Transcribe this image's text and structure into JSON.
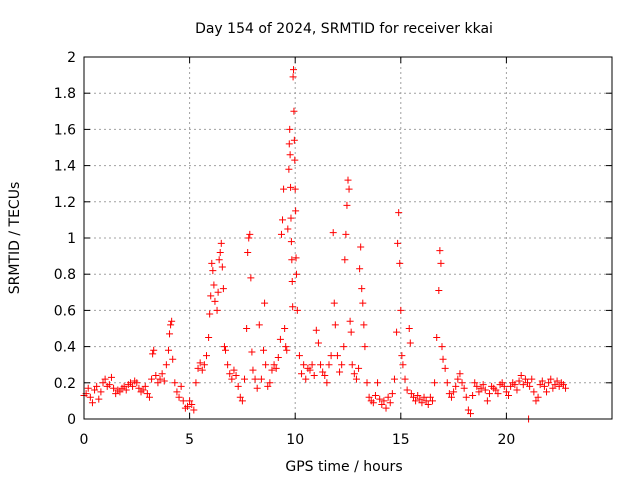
{
  "chart_data": {
    "type": "scatter",
    "title": "Day 154 of 2024, SRMTID for receiver kkai",
    "xlabel": "GPS time / hours",
    "ylabel": "SRMTID / TECUs",
    "xlim": [
      0,
      25
    ],
    "ylim": [
      0,
      2
    ],
    "xticks": [
      0,
      5,
      10,
      15,
      20
    ],
    "xtick_labels": [
      "0",
      "5",
      "10",
      "15",
      "20"
    ],
    "yticks": [
      0,
      0.2,
      0.4,
      0.6,
      0.8,
      1.0,
      1.2,
      1.4,
      1.6,
      1.8,
      2.0
    ],
    "ytick_labels": [
      "0",
      "0.2",
      "0.4",
      "0.6",
      "0.8",
      "1",
      "1.2",
      "1.4",
      "1.6",
      "1.8",
      "2"
    ],
    "grid": true,
    "marker": "+",
    "series": [
      {
        "name": "SRMTID",
        "color": "#ff0000",
        "points": [
          [
            0.0,
            0.13
          ],
          [
            0.1,
            0.14
          ],
          [
            0.2,
            0.17
          ],
          [
            0.3,
            0.12
          ],
          [
            0.4,
            0.09
          ],
          [
            0.5,
            0.16
          ],
          [
            0.6,
            0.18
          ],
          [
            0.7,
            0.11
          ],
          [
            0.8,
            0.15
          ],
          [
            0.9,
            0.2
          ],
          [
            1.0,
            0.22
          ],
          [
            1.1,
            0.18
          ],
          [
            1.2,
            0.19
          ],
          [
            1.3,
            0.23
          ],
          [
            1.4,
            0.17
          ],
          [
            1.5,
            0.14
          ],
          [
            1.6,
            0.16
          ],
          [
            1.7,
            0.15
          ],
          [
            1.8,
            0.17
          ],
          [
            1.9,
            0.18
          ],
          [
            2.0,
            0.16
          ],
          [
            2.1,
            0.19
          ],
          [
            2.2,
            0.2
          ],
          [
            2.3,
            0.18
          ],
          [
            2.4,
            0.21
          ],
          [
            2.5,
            0.2
          ],
          [
            2.6,
            0.17
          ],
          [
            2.7,
            0.15
          ],
          [
            2.8,
            0.16
          ],
          [
            2.9,
            0.18
          ],
          [
            3.0,
            0.14
          ],
          [
            3.1,
            0.12
          ],
          [
            3.2,
            0.22
          ],
          [
            3.25,
            0.36
          ],
          [
            3.3,
            0.38
          ],
          [
            3.4,
            0.24
          ],
          [
            3.5,
            0.2
          ],
          [
            3.6,
            0.22
          ],
          [
            3.7,
            0.25
          ],
          [
            3.8,
            0.21
          ],
          [
            3.9,
            0.3
          ],
          [
            4.0,
            0.38
          ],
          [
            4.05,
            0.47
          ],
          [
            4.1,
            0.52
          ],
          [
            4.15,
            0.54
          ],
          [
            4.2,
            0.33
          ],
          [
            4.3,
            0.2
          ],
          [
            4.4,
            0.15
          ],
          [
            4.5,
            0.12
          ],
          [
            4.6,
            0.18
          ],
          [
            4.7,
            0.1
          ],
          [
            4.8,
            0.06
          ],
          [
            4.9,
            0.07
          ],
          [
            5.0,
            0.1
          ],
          [
            5.1,
            0.08
          ],
          [
            5.2,
            0.05
          ],
          [
            5.3,
            0.2
          ],
          [
            5.4,
            0.28
          ],
          [
            5.5,
            0.31
          ],
          [
            5.6,
            0.27
          ],
          [
            5.7,
            0.3
          ],
          [
            5.8,
            0.35
          ],
          [
            5.9,
            0.45
          ],
          [
            5.95,
            0.58
          ],
          [
            6.0,
            0.68
          ],
          [
            6.05,
            0.86
          ],
          [
            6.1,
            0.82
          ],
          [
            6.15,
            0.74
          ],
          [
            6.2,
            0.65
          ],
          [
            6.3,
            0.6
          ],
          [
            6.35,
            0.7
          ],
          [
            6.4,
            0.88
          ],
          [
            6.45,
            0.92
          ],
          [
            6.5,
            0.97
          ],
          [
            6.55,
            0.84
          ],
          [
            6.6,
            0.72
          ],
          [
            6.65,
            0.4
          ],
          [
            6.7,
            0.38
          ],
          [
            6.8,
            0.3
          ],
          [
            6.9,
            0.25
          ],
          [
            7.0,
            0.22
          ],
          [
            7.1,
            0.27
          ],
          [
            7.2,
            0.24
          ],
          [
            7.3,
            0.18
          ],
          [
            7.4,
            0.12
          ],
          [
            7.5,
            0.1
          ],
          [
            7.6,
            0.22
          ],
          [
            7.7,
            0.5
          ],
          [
            7.75,
            0.92
          ],
          [
            7.8,
            1.0
          ],
          [
            7.85,
            1.02
          ],
          [
            7.9,
            0.78
          ],
          [
            7.95,
            0.37
          ],
          [
            8.0,
            0.27
          ],
          [
            8.1,
            0.22
          ],
          [
            8.2,
            0.17
          ],
          [
            8.3,
            0.52
          ],
          [
            8.4,
            0.22
          ],
          [
            8.5,
            0.38
          ],
          [
            8.55,
            0.64
          ],
          [
            8.6,
            0.3
          ],
          [
            8.7,
            0.18
          ],
          [
            8.8,
            0.2
          ],
          [
            8.9,
            0.27
          ],
          [
            9.0,
            0.3
          ],
          [
            9.1,
            0.28
          ],
          [
            9.2,
            0.34
          ],
          [
            9.3,
            0.44
          ],
          [
            9.35,
            1.02
          ],
          [
            9.4,
            1.1
          ],
          [
            9.45,
            1.27
          ],
          [
            9.5,
            0.5
          ],
          [
            9.55,
            0.4
          ],
          [
            9.6,
            0.38
          ],
          [
            9.65,
            1.05
          ],
          [
            9.7,
            1.38
          ],
          [
            9.72,
            1.52
          ],
          [
            9.74,
            1.6
          ],
          [
            9.76,
            1.46
          ],
          [
            9.78,
            1.28
          ],
          [
            9.8,
            1.11
          ],
          [
            9.82,
            0.98
          ],
          [
            9.84,
            0.88
          ],
          [
            9.86,
            0.76
          ],
          [
            9.88,
            0.62
          ],
          [
            9.9,
            1.89
          ],
          [
            9.92,
            1.93
          ],
          [
            9.94,
            1.7
          ],
          [
            9.96,
            1.54
          ],
          [
            9.98,
            1.43
          ],
          [
            10.0,
            1.27
          ],
          [
            10.02,
            1.15
          ],
          [
            10.04,
            0.89
          ],
          [
            10.06,
            0.8
          ],
          [
            10.1,
            0.6
          ],
          [
            10.2,
            0.35
          ],
          [
            10.3,
            0.25
          ],
          [
            10.4,
            0.3
          ],
          [
            10.5,
            0.22
          ],
          [
            10.6,
            0.28
          ],
          [
            10.7,
            0.27
          ],
          [
            10.8,
            0.3
          ],
          [
            10.9,
            0.24
          ],
          [
            11.0,
            0.49
          ],
          [
            11.1,
            0.42
          ],
          [
            11.2,
            0.3
          ],
          [
            11.3,
            0.26
          ],
          [
            11.4,
            0.24
          ],
          [
            11.5,
            0.2
          ],
          [
            11.6,
            0.3
          ],
          [
            11.7,
            0.35
          ],
          [
            11.8,
            1.03
          ],
          [
            11.85,
            0.64
          ],
          [
            11.9,
            0.52
          ],
          [
            12.0,
            0.35
          ],
          [
            12.1,
            0.26
          ],
          [
            12.2,
            0.3
          ],
          [
            12.3,
            0.4
          ],
          [
            12.35,
            0.88
          ],
          [
            12.4,
            1.02
          ],
          [
            12.45,
            1.18
          ],
          [
            12.5,
            1.32
          ],
          [
            12.55,
            1.27
          ],
          [
            12.6,
            0.54
          ],
          [
            12.65,
            0.48
          ],
          [
            12.7,
            0.3
          ],
          [
            12.8,
            0.25
          ],
          [
            12.9,
            0.22
          ],
          [
            13.0,
            0.28
          ],
          [
            13.05,
            0.83
          ],
          [
            13.1,
            0.95
          ],
          [
            13.15,
            0.72
          ],
          [
            13.2,
            0.64
          ],
          [
            13.25,
            0.52
          ],
          [
            13.3,
            0.4
          ],
          [
            13.4,
            0.2
          ],
          [
            13.5,
            0.12
          ],
          [
            13.6,
            0.1
          ],
          [
            13.7,
            0.09
          ],
          [
            13.8,
            0.13
          ],
          [
            13.9,
            0.2
          ],
          [
            14.0,
            0.11
          ],
          [
            14.1,
            0.08
          ],
          [
            14.2,
            0.1
          ],
          [
            14.3,
            0.06
          ],
          [
            14.4,
            0.12
          ],
          [
            14.5,
            0.09
          ],
          [
            14.6,
            0.14
          ],
          [
            14.7,
            0.22
          ],
          [
            14.8,
            0.48
          ],
          [
            14.85,
            0.97
          ],
          [
            14.9,
            1.14
          ],
          [
            14.95,
            0.86
          ],
          [
            15.0,
            0.6
          ],
          [
            15.05,
            0.35
          ],
          [
            15.1,
            0.3
          ],
          [
            15.2,
            0.22
          ],
          [
            15.3,
            0.16
          ],
          [
            15.4,
            0.5
          ],
          [
            15.45,
            0.42
          ],
          [
            15.5,
            0.14
          ],
          [
            15.6,
            0.12
          ],
          [
            15.7,
            0.1
          ],
          [
            15.8,
            0.13
          ],
          [
            15.9,
            0.11
          ],
          [
            16.0,
            0.09
          ],
          [
            16.1,
            0.12
          ],
          [
            16.2,
            0.1
          ],
          [
            16.3,
            0.08
          ],
          [
            16.4,
            0.12
          ],
          [
            16.5,
            0.1
          ],
          [
            16.6,
            0.2
          ],
          [
            16.7,
            0.45
          ],
          [
            16.8,
            0.71
          ],
          [
            16.85,
            0.93
          ],
          [
            16.9,
            0.86
          ],
          [
            16.95,
            0.4
          ],
          [
            17.0,
            0.33
          ],
          [
            17.1,
            0.28
          ],
          [
            17.2,
            0.2
          ],
          [
            17.3,
            0.14
          ],
          [
            17.4,
            0.12
          ],
          [
            17.5,
            0.15
          ],
          [
            17.6,
            0.18
          ],
          [
            17.7,
            0.22
          ],
          [
            17.8,
            0.25
          ],
          [
            17.9,
            0.2
          ],
          [
            18.0,
            0.17
          ],
          [
            18.1,
            0.12
          ],
          [
            18.2,
            0.05
          ],
          [
            18.3,
            0.03
          ],
          [
            18.4,
            0.13
          ],
          [
            18.5,
            0.2
          ],
          [
            18.6,
            0.18
          ],
          [
            18.7,
            0.15
          ],
          [
            18.8,
            0.17
          ],
          [
            18.9,
            0.19
          ],
          [
            19.0,
            0.16
          ],
          [
            19.1,
            0.1
          ],
          [
            19.2,
            0.14
          ],
          [
            19.3,
            0.18
          ],
          [
            19.4,
            0.17
          ],
          [
            19.5,
            0.16
          ],
          [
            19.6,
            0.14
          ],
          [
            19.7,
            0.19
          ],
          [
            19.8,
            0.2
          ],
          [
            19.9,
            0.18
          ],
          [
            20.0,
            0.15
          ],
          [
            20.1,
            0.13
          ],
          [
            20.2,
            0.18
          ],
          [
            20.3,
            0.2
          ],
          [
            20.4,
            0.19
          ],
          [
            20.5,
            0.16
          ],
          [
            20.6,
            0.21
          ],
          [
            20.7,
            0.24
          ],
          [
            20.8,
            0.19
          ],
          [
            20.9,
            0.22
          ],
          [
            21.0,
            0.2
          ],
          [
            21.05,
            0.0
          ],
          [
            21.1,
            0.18
          ],
          [
            21.2,
            0.22
          ],
          [
            21.3,
            0.15
          ],
          [
            21.4,
            0.1
          ],
          [
            21.5,
            0.12
          ],
          [
            21.6,
            0.19
          ],
          [
            21.7,
            0.21
          ],
          [
            21.8,
            0.18
          ],
          [
            21.9,
            0.15
          ],
          [
            22.0,
            0.2
          ],
          [
            22.1,
            0.22
          ],
          [
            22.2,
            0.17
          ],
          [
            22.3,
            0.19
          ],
          [
            22.4,
            0.21
          ],
          [
            22.5,
            0.18
          ],
          [
            22.6,
            0.2
          ],
          [
            22.7,
            0.19
          ],
          [
            22.8,
            0.17
          ]
        ]
      }
    ]
  }
}
